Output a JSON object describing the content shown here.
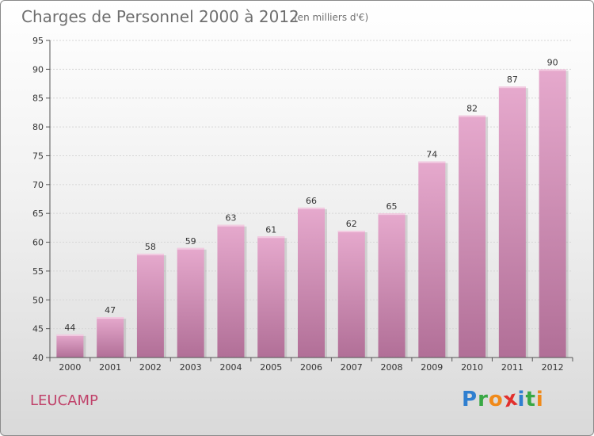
{
  "chart_data": {
    "type": "bar",
    "title": "Charges de Personnel 2000 à 2012",
    "subtitle": "(en milliers d'€)",
    "categories": [
      "2000",
      "2001",
      "2002",
      "2003",
      "2004",
      "2005",
      "2006",
      "2007",
      "2008",
      "2009",
      "2010",
      "2011",
      "2012"
    ],
    "values": [
      44,
      47,
      58,
      59,
      63,
      61,
      66,
      62,
      65,
      74,
      82,
      87,
      90
    ],
    "ylim": [
      40,
      95
    ],
    "yticks": [
      40,
      45,
      50,
      55,
      60,
      65,
      70,
      75,
      80,
      85,
      90,
      95
    ],
    "xlabel": "",
    "ylabel": "",
    "bar_color_top": "#e6a9cd",
    "bar_color_bottom": "#b16f97"
  },
  "footer": {
    "commune": "LEUCAMP",
    "brand_letters": [
      {
        "char": "P",
        "color": "#2f7fd0"
      },
      {
        "char": "r",
        "color": "#39a844"
      },
      {
        "char": "o",
        "color": "#f08a1a"
      },
      {
        "char": "x",
        "color": "#e2302d"
      },
      {
        "char": "i",
        "color": "#2f7fd0"
      },
      {
        "char": "t",
        "color": "#39a844"
      },
      {
        "char": "i",
        "color": "#f08a1a"
      }
    ]
  }
}
